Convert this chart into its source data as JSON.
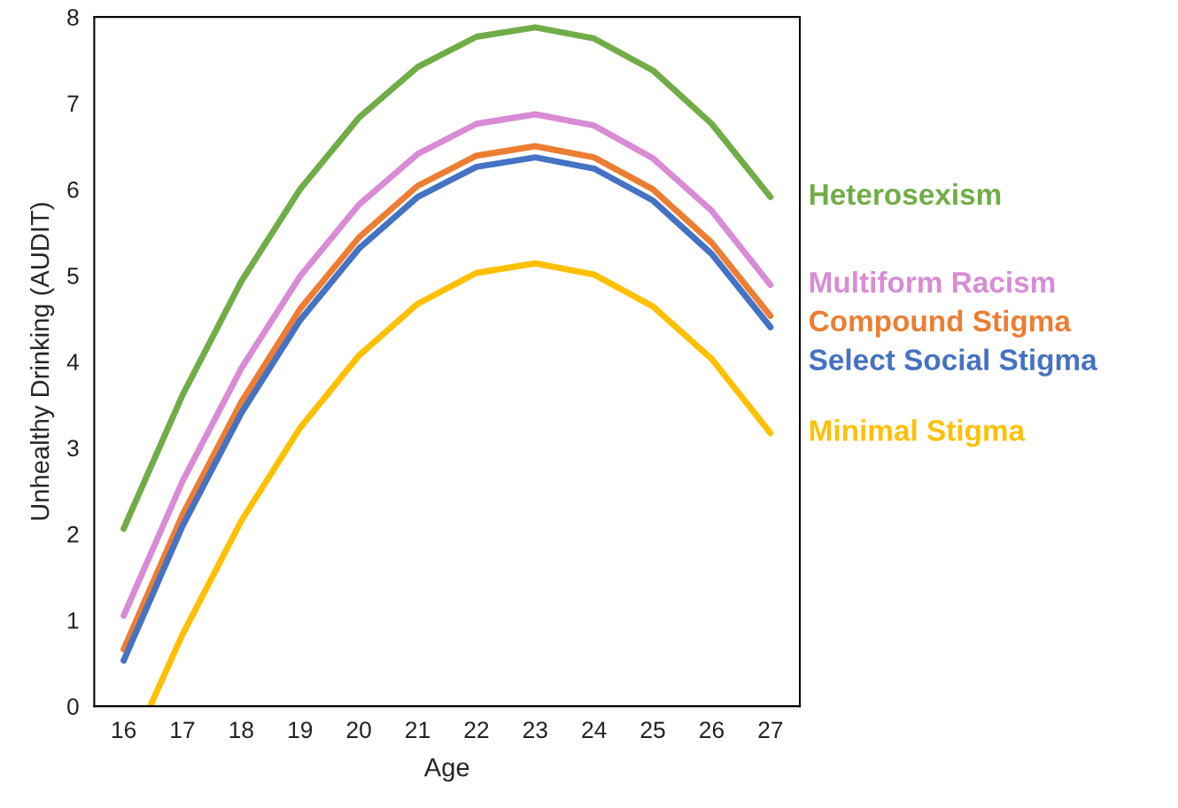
{
  "chart_data": {
    "type": "line",
    "xlabel": "Age",
    "ylabel": "Unhealthy Drinking (AUDIT)",
    "x": [
      16,
      17,
      18,
      19,
      20,
      21,
      22,
      23,
      24,
      25,
      26,
      27
    ],
    "xlim": [
      15.5,
      27.5
    ],
    "xticks": [
      16,
      17,
      18,
      19,
      20,
      21,
      22,
      23,
      24,
      25,
      26,
      27
    ],
    "ylim": [
      0,
      8
    ],
    "yticks": [
      0,
      1,
      2,
      3,
      4,
      5,
      6,
      7,
      8
    ],
    "grid": false,
    "legend": false,
    "marker": "none",
    "line_style": "solid",
    "series": [
      {
        "name": "Heterosexism",
        "color": "#70ad47",
        "values": [
          2.06,
          3.61,
          4.93,
          6.0,
          6.83,
          7.42,
          7.77,
          7.88,
          7.75,
          7.38,
          6.76,
          5.91
        ]
      },
      {
        "name": "Multiform Racism",
        "color": "#d98bd5",
        "values": [
          1.05,
          2.61,
          3.92,
          4.99,
          5.82,
          6.41,
          6.76,
          6.87,
          6.74,
          6.36,
          5.75,
          4.89
        ]
      },
      {
        "name": "Compound Stigma",
        "color": "#ed7d31",
        "values": [
          0.66,
          2.22,
          3.53,
          4.61,
          5.44,
          6.04,
          6.39,
          6.5,
          6.37,
          6.0,
          5.38,
          4.53
        ]
      },
      {
        "name": "Select Social Stigma",
        "color": "#4472c4",
        "values": [
          0.53,
          2.09,
          3.4,
          4.48,
          5.31,
          5.91,
          6.26,
          6.37,
          6.24,
          5.87,
          5.25,
          4.4
        ]
      },
      {
        "name": "Minimal Stigma",
        "color": "#ffc000",
        "x": [
          16.45,
          17,
          18,
          19,
          20,
          21,
          22,
          23,
          24,
          25,
          26,
          27
        ],
        "values": [
          0,
          0.83,
          2.15,
          3.23,
          4.07,
          4.67,
          5.03,
          5.14,
          5.01,
          4.64,
          4.03,
          3.17
        ]
      }
    ]
  }
}
